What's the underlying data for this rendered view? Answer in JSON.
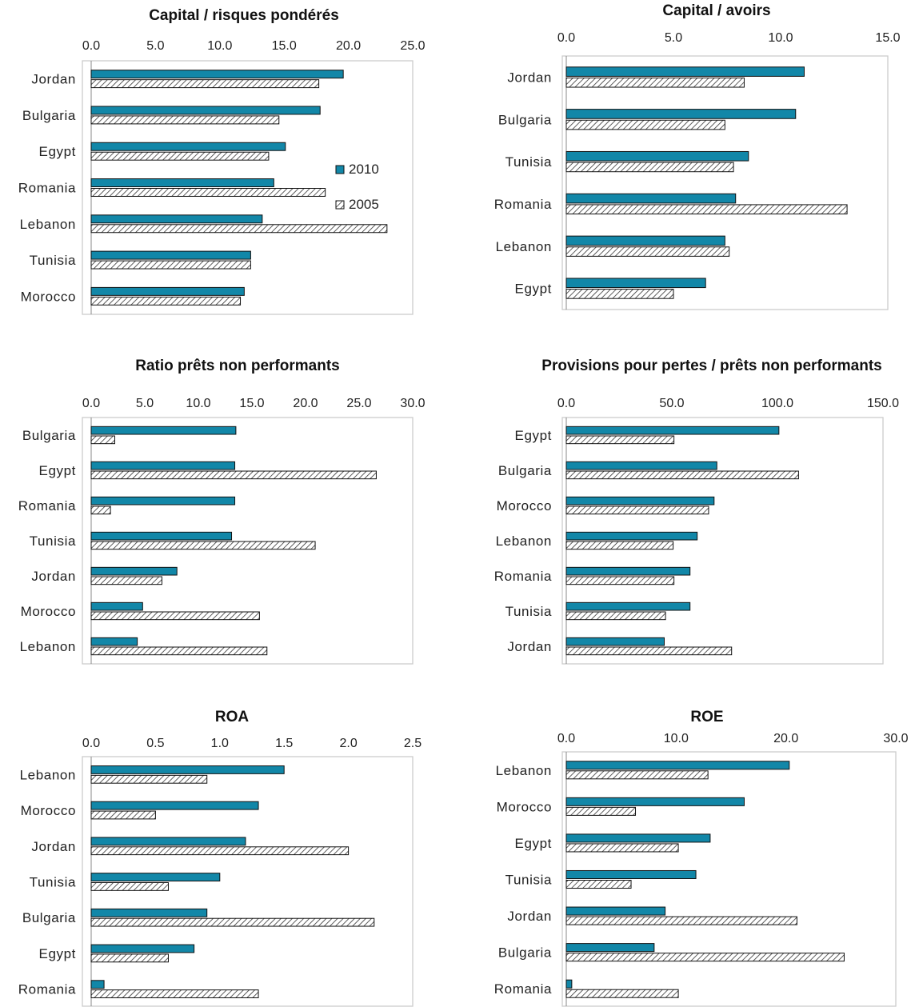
{
  "colors": {
    "series_2010": "#1287a8",
    "series_2005_hatch": "#333333",
    "frame": "#cccccc",
    "text": "#222222"
  },
  "chart_data": [
    {
      "type": "bar",
      "orientation": "horizontal",
      "title": "Capital / risques pondérés",
      "xlim": [
        0,
        25
      ],
      "ticks": [
        "0.0",
        "5.0",
        "10.0",
        "15.0",
        "20.0",
        "25.0"
      ],
      "tick_values": [
        0,
        5,
        10,
        15,
        20,
        25
      ],
      "categories": [
        "Jordan",
        "Bulgaria",
        "Egypt",
        "Romania",
        "Lebanon",
        "Tunisia",
        "Morocco"
      ],
      "series": [
        {
          "name": "2010",
          "values": [
            19.6,
            17.8,
            15.1,
            14.2,
            13.3,
            12.4,
            11.9
          ]
        },
        {
          "name": "2005",
          "values": [
            17.7,
            14.6,
            13.8,
            18.2,
            23.0,
            12.4,
            11.6
          ]
        }
      ],
      "legend": {
        "placement": "right-center",
        "entries": [
          "2010",
          "2005"
        ]
      }
    },
    {
      "type": "bar",
      "orientation": "horizontal",
      "title": "Capital / avoirs",
      "xlim": [
        0,
        15
      ],
      "ticks": [
        "0.0",
        "5.0",
        "10.0",
        "15.0"
      ],
      "tick_values": [
        0,
        5,
        10,
        15
      ],
      "categories": [
        "Jordan",
        "Bulgaria",
        "Tunisia",
        "Romania",
        "Lebanon",
        "Egypt"
      ],
      "series": [
        {
          "name": "2010",
          "values": [
            11.1,
            10.7,
            8.5,
            7.9,
            7.4,
            6.5
          ]
        },
        {
          "name": "2005",
          "values": [
            8.3,
            7.4,
            7.8,
            13.1,
            7.6,
            5.0
          ]
        }
      ]
    },
    {
      "type": "bar",
      "orientation": "horizontal",
      "title": "Ratio prêts non performants",
      "xlim": [
        0,
        30
      ],
      "ticks": [
        "0.0",
        "5.0",
        "10.0",
        "15.0",
        "20.0",
        "25.0",
        "30.0"
      ],
      "tick_values": [
        0,
        5,
        10,
        15,
        20,
        25,
        30
      ],
      "categories": [
        "Bulgaria",
        "Egypt",
        "Romania",
        "Tunisia",
        "Jordan",
        "Morocco",
        "Lebanon"
      ],
      "series": [
        {
          "name": "2010",
          "values": [
            13.5,
            13.4,
            13.4,
            13.1,
            8.0,
            4.8,
            4.3
          ]
        },
        {
          "name": "2005",
          "values": [
            2.2,
            26.6,
            1.8,
            20.9,
            6.6,
            15.7,
            16.4
          ]
        }
      ]
    },
    {
      "type": "bar",
      "orientation": "horizontal",
      "title": "Provisions pour pertes / prêts non performants",
      "xlim": [
        0,
        150
      ],
      "ticks": [
        "0.0",
        "50.0",
        "100.0",
        "150.0"
      ],
      "tick_values": [
        0,
        50,
        100,
        150
      ],
      "categories": [
        "Egypt",
        "Bulgaria",
        "Morocco",
        "Lebanon",
        "Romania",
        "Tunisia",
        "Jordan"
      ],
      "series": [
        {
          "name": "2010",
          "values": [
            100.7,
            71.3,
            70.0,
            62.0,
            58.6,
            58.6,
            46.4
          ]
        },
        {
          "name": "2005",
          "values": [
            51.0,
            110.0,
            67.4,
            50.6,
            51.0,
            47.0,
            78.3
          ]
        }
      ]
    },
    {
      "type": "bar",
      "orientation": "horizontal",
      "title": "ROA",
      "xlim": [
        0,
        2.5
      ],
      "ticks": [
        "0.0",
        "0.5",
        "1.0",
        "1.5",
        "2.0",
        "2.5"
      ],
      "tick_values": [
        0,
        0.5,
        1.0,
        1.5,
        2.0,
        2.5
      ],
      "categories": [
        "Lebanon",
        "Morocco",
        "Jordan",
        "Tunisia",
        "Bulgaria",
        "Egypt",
        "Romania"
      ],
      "series": [
        {
          "name": "2010",
          "values": [
            1.5,
            1.3,
            1.2,
            1.0,
            0.9,
            0.8,
            0.1
          ]
        },
        {
          "name": "2005",
          "values": [
            0.9,
            0.5,
            2.0,
            0.6,
            2.2,
            0.6,
            1.3
          ]
        }
      ]
    },
    {
      "type": "bar",
      "orientation": "horizontal",
      "title": "ROE",
      "xlim": [
        0,
        30
      ],
      "ticks": [
        "0.0",
        "10.0",
        "20.0",
        "30.0"
      ],
      "tick_values": [
        0,
        10,
        20,
        30
      ],
      "categories": [
        "Lebanon",
        "Morocco",
        "Egypt",
        "Tunisia",
        "Jordan",
        "Bulgaria",
        "Romania"
      ],
      "series": [
        {
          "name": "2010",
          "values": [
            20.3,
            16.2,
            13.1,
            11.8,
            9.0,
            8.0,
            0.5
          ]
        },
        {
          "name": "2005",
          "values": [
            12.9,
            6.3,
            10.2,
            5.9,
            21.0,
            25.3,
            10.2
          ]
        }
      ]
    }
  ]
}
